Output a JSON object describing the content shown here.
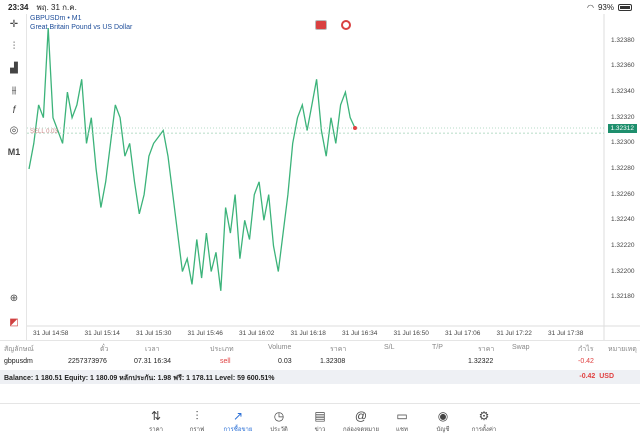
{
  "status_bar": {
    "time": "23:34",
    "date": "พฤ. 31 ก.ค.",
    "battery": "93%"
  },
  "chart": {
    "symbol": "GBPUSDm • M1",
    "description": "Great Britain Pound vs US Dollar",
    "sell_label": "SELL 0.03",
    "current_price": "1.32312",
    "price_labels": [
      "1.32380",
      "1.32360",
      "1.32340",
      "1.32320",
      "1.32300",
      "1.32280",
      "1.32260",
      "1.32240",
      "1.32220",
      "1.32200",
      "1.32180"
    ],
    "time_labels": [
      "31 Jul 14:58",
      "31 Jul 15:14",
      "31 Jul 15:30",
      "31 Jul 15:46",
      "31 Jul 16:02",
      "31 Jul 16:18",
      "31 Jul 16:34",
      "31 Jul 16:50",
      "31 Jul 17:06",
      "31 Jul 17:22",
      "31 Jul 17:38"
    ]
  },
  "chart_data": {
    "type": "line",
    "title": "GBPUSDm • M1",
    "subtitle": "Great Britain Pound vs US Dollar",
    "ylim": [
      1.3217,
      1.3239
    ],
    "values": [
      1.3228,
      1.323,
      1.3233,
      1.3232,
      1.3239,
      1.3232,
      1.3231,
      1.323,
      1.3234,
      1.3232,
      1.3233,
      1.3235,
      1.323,
      1.3232,
      1.3228,
      1.3225,
      1.3227,
      1.323,
      1.3233,
      1.3232,
      1.3229,
      1.323,
      1.3227,
      1.32245,
      1.3226,
      1.3229,
      1.323,
      1.32305,
      1.3231,
      1.3229,
      1.3226,
      1.3223,
      1.322,
      1.3221,
      1.3219,
      1.32225,
      1.32195,
      1.3223,
      1.322,
      1.32215,
      1.32185,
      1.3225,
      1.3223,
      1.3226,
      1.3221,
      1.3224,
      1.32225,
      1.3226,
      1.3227,
      1.3224,
      1.3226,
      1.3222,
      1.322,
      1.3223,
      1.3226,
      1.323,
      1.3232,
      1.3233,
      1.3231,
      1.3233,
      1.3235,
      1.3231,
      1.3229,
      1.3232,
      1.323,
      1.3233,
      1.3234,
      1.3232,
      1.32312
    ],
    "sell_price": 1.32308,
    "grid": true
  },
  "table": {
    "headers": [
      "สัญลักษณ์",
      "ตั๋ว",
      "เวลา",
      "ประเภท",
      "Volume",
      "ราคา",
      "S/L",
      "T/P",
      "ราคา",
      "Swap",
      "กำไร",
      "หมายเหตุ"
    ],
    "row": {
      "symbol": "gbpusdm",
      "ticket": "2257373976",
      "time": "07.31 16:34",
      "type": "sell",
      "volume": "0.03",
      "price": "1.32308",
      "current_price": "1.32322",
      "profit": "-0.42"
    }
  },
  "balance": {
    "text": "Balance: 1 180.51 Equity: 1 180.09 หลักประกัน: 1.98 ฟรี: 1 178.11 Level: 59 600.51%",
    "profit": "-0.42",
    "currency": "USD"
  },
  "nav": [
    {
      "label": "ราคา",
      "icon": "⇅",
      "name": "nav-quotes"
    },
    {
      "label": "กราฟ",
      "icon": "⫶",
      "name": "nav-charts"
    },
    {
      "label": "การซื้อขาย",
      "icon": "↗",
      "name": "nav-trade"
    },
    {
      "label": "ประวัติ",
      "icon": "◷",
      "name": "nav-history"
    },
    {
      "label": "ข่าว",
      "icon": "▤",
      "name": "nav-news"
    },
    {
      "label": "กล่องจดหมาย",
      "icon": "@",
      "name": "nav-mailbox"
    },
    {
      "label": "แชท",
      "icon": "▭",
      "name": "nav-chat"
    },
    {
      "label": "บัญชี",
      "icon": "◉",
      "name": "nav-account"
    },
    {
      "label": "การตั้งค่า",
      "icon": "⚙",
      "name": "nav-settings"
    }
  ],
  "colors": {
    "line": "#3cb37a",
    "accent": "#2a6fd6",
    "loss": "#e04040",
    "price_tag": "#1e8f6d"
  }
}
